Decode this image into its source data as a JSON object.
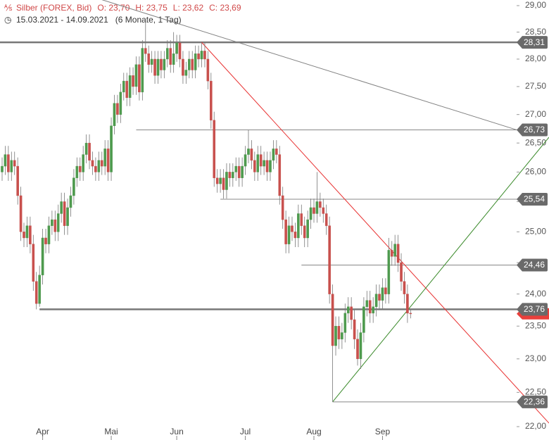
{
  "chart_data": {
    "type": "candlestick",
    "header": {
      "title": "Silber (FOREX, Bid)",
      "ohlc": [
        "O: 23,70",
        "H: 23,75",
        "L: 23,62",
        "C: 23,69"
      ],
      "range": "15.03.2021 - 14.09.2021",
      "period": "(6 Monate, 1 Tag)"
    },
    "up_color": "#4e9a4e",
    "down_color": "#c8504d",
    "log": true,
    "ylim": [
      22,
      29
    ],
    "yticks": [
      {
        "value": 29,
        "label": "29,00"
      },
      {
        "value": 28.5,
        "label": "28,50"
      },
      {
        "value": 28,
        "label": "28,00"
      },
      {
        "value": 27.5,
        "label": "27,50"
      },
      {
        "value": 27,
        "label": "27,00"
      },
      {
        "value": 26.5,
        "label": "26,50"
      },
      {
        "value": 26,
        "label": "26,00"
      },
      {
        "value": 25.5,
        "label": "25,50"
      },
      {
        "value": 25,
        "label": "25,00"
      },
      {
        "value": 24.5,
        "label": "24,50"
      },
      {
        "value": 24,
        "label": "24,00"
      },
      {
        "value": 23.5,
        "label": "23,50"
      },
      {
        "value": 23,
        "label": "23,00"
      },
      {
        "value": 22.5,
        "label": "22,50"
      },
      {
        "value": 22,
        "label": "22,00"
      }
    ],
    "xticks": [
      {
        "value": 13,
        "label": "Apr"
      },
      {
        "value": 35,
        "label": "Mai"
      },
      {
        "value": 56,
        "label": "Jun"
      },
      {
        "value": 78,
        "label": "Jul"
      },
      {
        "value": 100,
        "label": "Aug"
      },
      {
        "value": 122,
        "label": "Sep"
      }
    ],
    "open": [
      26.0,
      26.1,
      26.3,
      26.0,
      26.2,
      26.1,
      25.6,
      25.0,
      24.9,
      25.1,
      24.8,
      24.2,
      23.85,
      24.3,
      24.9,
      24.8,
      25.1,
      25.2,
      25.0,
      25.3,
      25.5,
      25.1,
      25.4,
      25.6,
      25.9,
      26.1,
      26.0,
      26.3,
      26.5,
      26.2,
      26.1,
      26.0,
      26.2,
      26.1,
      26.4,
      26.0,
      26.8,
      27.2,
      27.0,
      27.4,
      27.6,
      27.3,
      27.7,
      27.5,
      27.9,
      27.4,
      28.2,
      28.1,
      27.9,
      28.0,
      27.7,
      28.0,
      27.8,
      28.0,
      28.2,
      27.9,
      28.1,
      28.3,
      28.0,
      27.7,
      27.8,
      28.0,
      27.8,
      28.1,
      28.0,
      28.15,
      28.0,
      27.6,
      26.9,
      25.9,
      25.8,
      25.9,
      25.7,
      26.0,
      25.9,
      26.0,
      26.1,
      25.9,
      26.1,
      26.3,
      26.4,
      26.2,
      26.0,
      26.3,
      26.1,
      26.2,
      26.0,
      26.2,
      26.4,
      26.3,
      25.6,
      25.2,
      24.8,
      25.1,
      25.0,
      24.9,
      25.3,
      25.1,
      24.9,
      25.2,
      25.4,
      25.3,
      25.5,
      25.4,
      25.3,
      25.1,
      24.0,
      23.2,
      23.5,
      23.3,
      23.4,
      23.7,
      23.8,
      23.6,
      23.3,
      23.0,
      23.4,
      23.8,
      23.9,
      23.7,
      23.8,
      24.0,
      23.9,
      24.1,
      24.0,
      24.7,
      24.6,
      24.8,
      24.5,
      24.2,
      24.0,
      23.7
    ],
    "high": [
      26.25,
      26.45,
      26.45,
      26.35,
      26.35,
      26.25,
      25.75,
      25.15,
      25.25,
      25.25,
      24.95,
      24.35,
      24.45,
      25.05,
      25.05,
      25.25,
      25.35,
      25.35,
      25.45,
      25.65,
      25.65,
      25.55,
      25.75,
      26.05,
      26.25,
      26.25,
      26.45,
      26.65,
      26.65,
      26.35,
      26.25,
      26.35,
      26.35,
      26.55,
      26.55,
      26.95,
      27.35,
      27.35,
      27.55,
      27.75,
      27.75,
      27.85,
      27.85,
      28.05,
      28.05,
      28.35,
      28.7,
      28.25,
      28.15,
      28.15,
      28.15,
      28.15,
      28.15,
      28.35,
      28.35,
      28.5,
      28.45,
      28.45,
      28.15,
      27.95,
      28.15,
      28.15,
      28.25,
      28.25,
      28.3,
      28.3,
      28.15,
      27.75,
      27.05,
      26.05,
      26.05,
      26.05,
      26.15,
      26.15,
      26.15,
      26.25,
      26.25,
      26.25,
      26.45,
      26.73,
      26.55,
      26.35,
      26.45,
      26.45,
      26.35,
      26.35,
      26.35,
      26.55,
      26.55,
      26.45,
      25.75,
      25.35,
      25.25,
      25.25,
      25.15,
      25.45,
      25.45,
      25.25,
      25.35,
      25.55,
      25.55,
      26.0,
      25.65,
      25.55,
      25.45,
      25.25,
      24.15,
      23.65,
      23.65,
      23.55,
      23.85,
      23.95,
      23.95,
      23.75,
      23.45,
      23.55,
      23.95,
      24.05,
      24.05,
      23.95,
      24.15,
      24.15,
      24.25,
      24.25,
      24.9,
      24.85,
      24.95,
      24.95,
      24.65,
      24.35,
      24.15,
      23.75
    ],
    "low": [
      25.85,
      25.95,
      25.85,
      25.85,
      25.95,
      25.45,
      24.85,
      24.75,
      24.75,
      24.65,
      24.05,
      23.76,
      23.8,
      24.15,
      24.65,
      24.65,
      24.95,
      24.85,
      24.85,
      25.15,
      24.95,
      24.95,
      25.25,
      25.45,
      25.75,
      25.85,
      25.85,
      26.15,
      26.05,
      25.95,
      25.85,
      25.85,
      25.95,
      25.95,
      25.85,
      25.85,
      26.65,
      26.85,
      26.85,
      27.25,
      27.15,
      27.15,
      27.35,
      27.35,
      27.25,
      27.25,
      27.95,
      27.75,
      27.75,
      27.55,
      27.55,
      27.65,
      27.65,
      27.85,
      27.75,
      27.75,
      27.95,
      27.85,
      27.55,
      27.55,
      27.65,
      27.65,
      27.65,
      27.85,
      27.85,
      27.85,
      27.45,
      26.75,
      25.75,
      25.65,
      25.65,
      25.55,
      25.55,
      25.75,
      25.75,
      25.85,
      25.75,
      25.75,
      25.95,
      26.15,
      26.05,
      25.85,
      25.85,
      25.95,
      25.95,
      25.85,
      25.85,
      26.05,
      26.15,
      25.45,
      25.05,
      24.65,
      24.65,
      24.85,
      24.75,
      24.75,
      24.95,
      24.75,
      24.75,
      25.05,
      25.15,
      25.15,
      25.25,
      25.15,
      24.95,
      23.85,
      22.36,
      23.05,
      23.15,
      23.15,
      23.25,
      23.55,
      23.45,
      23.15,
      22.9,
      22.85,
      23.25,
      23.65,
      23.55,
      23.55,
      23.65,
      23.75,
      23.75,
      23.85,
      23.85,
      24.45,
      24.45,
      24.35,
      24.05,
      23.85,
      23.55,
      23.62
    ],
    "close": [
      26.1,
      26.3,
      26.0,
      26.2,
      26.1,
      25.6,
      25.0,
      24.9,
      25.1,
      24.8,
      24.2,
      23.85,
      24.3,
      24.9,
      24.8,
      25.1,
      25.2,
      25.0,
      25.3,
      25.5,
      25.1,
      25.4,
      25.6,
      25.9,
      26.1,
      26.0,
      26.3,
      26.5,
      26.2,
      26.1,
      26.0,
      26.2,
      26.1,
      26.4,
      26.0,
      26.8,
      27.2,
      27.0,
      27.4,
      27.6,
      27.3,
      27.7,
      27.5,
      27.9,
      27.4,
      28.2,
      28.1,
      27.9,
      28.0,
      27.7,
      28.0,
      27.8,
      28.0,
      28.2,
      27.9,
      28.1,
      28.3,
      28.0,
      27.7,
      27.8,
      28.0,
      27.8,
      28.1,
      28.0,
      28.15,
      28.0,
      27.6,
      26.9,
      25.9,
      25.8,
      25.9,
      25.7,
      26.0,
      25.9,
      26.0,
      26.1,
      25.9,
      26.1,
      26.3,
      26.4,
      26.2,
      26.0,
      26.3,
      26.1,
      26.2,
      26.0,
      26.2,
      26.4,
      26.3,
      25.6,
      25.2,
      24.8,
      25.1,
      25.0,
      24.9,
      25.3,
      25.1,
      24.9,
      25.2,
      25.4,
      25.3,
      25.5,
      25.4,
      25.3,
      25.1,
      24.0,
      23.2,
      23.5,
      23.3,
      23.4,
      23.7,
      23.8,
      23.6,
      23.3,
      23.0,
      23.4,
      23.8,
      23.9,
      23.7,
      23.8,
      24.0,
      23.9,
      24.1,
      24.0,
      24.7,
      24.6,
      24.8,
      24.5,
      24.2,
      24.0,
      23.7,
      23.69
    ],
    "current_color": "#e8403c",
    "levels": [
      {
        "value": 28.31,
        "label": "28,31",
        "from": 0,
        "thick": true
      },
      {
        "value": 26.73,
        "label": "26,73",
        "from": 43,
        "thick": false
      },
      {
        "value": 25.54,
        "label": "25,54",
        "from": 70,
        "thick": false
      },
      {
        "value": 24.46,
        "label": "24,46",
        "from": 96,
        "thick": false
      },
      {
        "value": 23.76,
        "label": "23,76",
        "from": 12,
        "thick": true
      },
      {
        "value": 22.36,
        "label": "22,36",
        "from": 106,
        "thick": false
      }
    ],
    "trendlines": [
      {
        "color": "#808080",
        "from": [
          22,
          29.3
        ],
        "to": [
          165,
          26.73
        ]
      },
      {
        "color": "#e83030",
        "from": [
          64,
          28.31
        ],
        "to": [
          175.4,
          22.05
        ]
      },
      {
        "color": "#3a8a2a",
        "from": [
          106,
          22.36
        ],
        "to": [
          175.4,
          26.6
        ]
      }
    ]
  }
}
